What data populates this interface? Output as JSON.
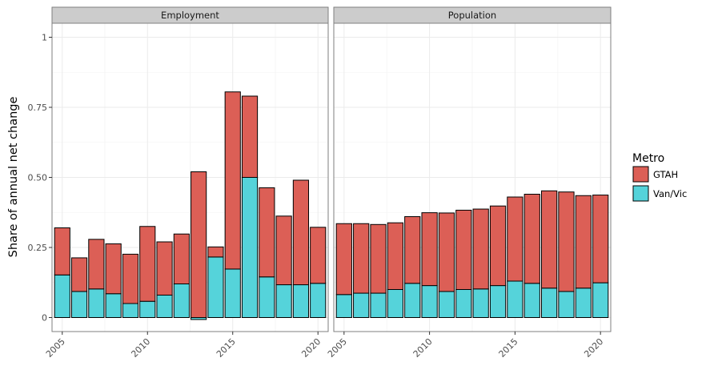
{
  "chart_data": {
    "type": "bar",
    "stacked": true,
    "facets": [
      "Employment",
      "Population"
    ],
    "x": [
      2005,
      2006,
      2007,
      2008,
      2009,
      2010,
      2011,
      2012,
      2013,
      2014,
      2015,
      2016,
      2017,
      2018,
      2019,
      2020
    ],
    "x_ticks": [
      2005,
      2010,
      2015,
      2020
    ],
    "y_ticks": [
      0,
      0.25,
      0.5,
      0.75,
      1
    ],
    "y_tick_labels": [
      "0",
      "0.25",
      "0.50",
      "0.75",
      "1"
    ],
    "ylim": [
      -0.05,
      1.05
    ],
    "ylabel": "Share of annual net change",
    "xlabel": "",
    "grid": true,
    "legend": {
      "title": "Metro",
      "position": "right",
      "entries": [
        {
          "label": "GTAH",
          "color": "#dc5f56"
        },
        {
          "label": "Van/Vic",
          "color": "#55d3da"
        }
      ]
    },
    "panels": [
      {
        "facet": "Employment",
        "series": [
          {
            "name": "Van/Vic",
            "values": [
              0.152,
              0.093,
              0.102,
              0.085,
              0.05,
              0.058,
              0.08,
              0.12,
              -0.007,
              0.216,
              0.173,
              0.5,
              0.145,
              0.117,
              0.117,
              0.122
            ]
          },
          {
            "name": "GTAH",
            "values": [
              0.168,
              0.12,
              0.177,
              0.178,
              0.176,
              0.267,
              0.19,
              0.178,
              0.52,
              0.036,
              0.632,
              0.29,
              0.318,
              0.245,
              0.373,
              0.2
            ]
          }
        ]
      },
      {
        "facet": "Population",
        "series": [
          {
            "name": "Van/Vic",
            "values": [
              0.082,
              0.087,
              0.087,
              0.1,
              0.122,
              0.114,
              0.093,
              0.1,
              0.102,
              0.114,
              0.13,
              0.122,
              0.105,
              0.093,
              0.105,
              0.124
            ]
          },
          {
            "name": "GTAH",
            "values": [
              0.253,
              0.248,
              0.245,
              0.238,
              0.238,
              0.26,
              0.28,
              0.283,
              0.285,
              0.284,
              0.3,
              0.318,
              0.347,
              0.355,
              0.33,
              0.313
            ]
          }
        ]
      }
    ]
  }
}
